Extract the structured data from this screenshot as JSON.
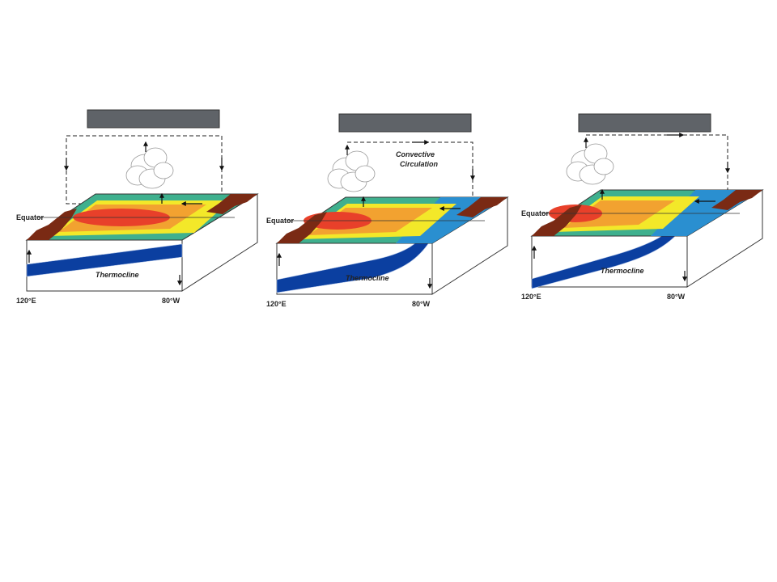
{
  "panels": [
    {
      "equator_label": "Equator",
      "thermocline_label": "Thermocline",
      "west_label": "120°E",
      "east_label": "80°W"
    },
    {
      "equator_label": "Equator",
      "thermocline_label": "Thermocline",
      "west_label": "120°E",
      "east_label": "80°W",
      "circulation_lines": [
        "Convective",
        "Circulation"
      ]
    },
    {
      "equator_label": "Equator",
      "thermocline_label": "Thermocline",
      "west_label": "120°E",
      "east_label": "80°W"
    }
  ]
}
